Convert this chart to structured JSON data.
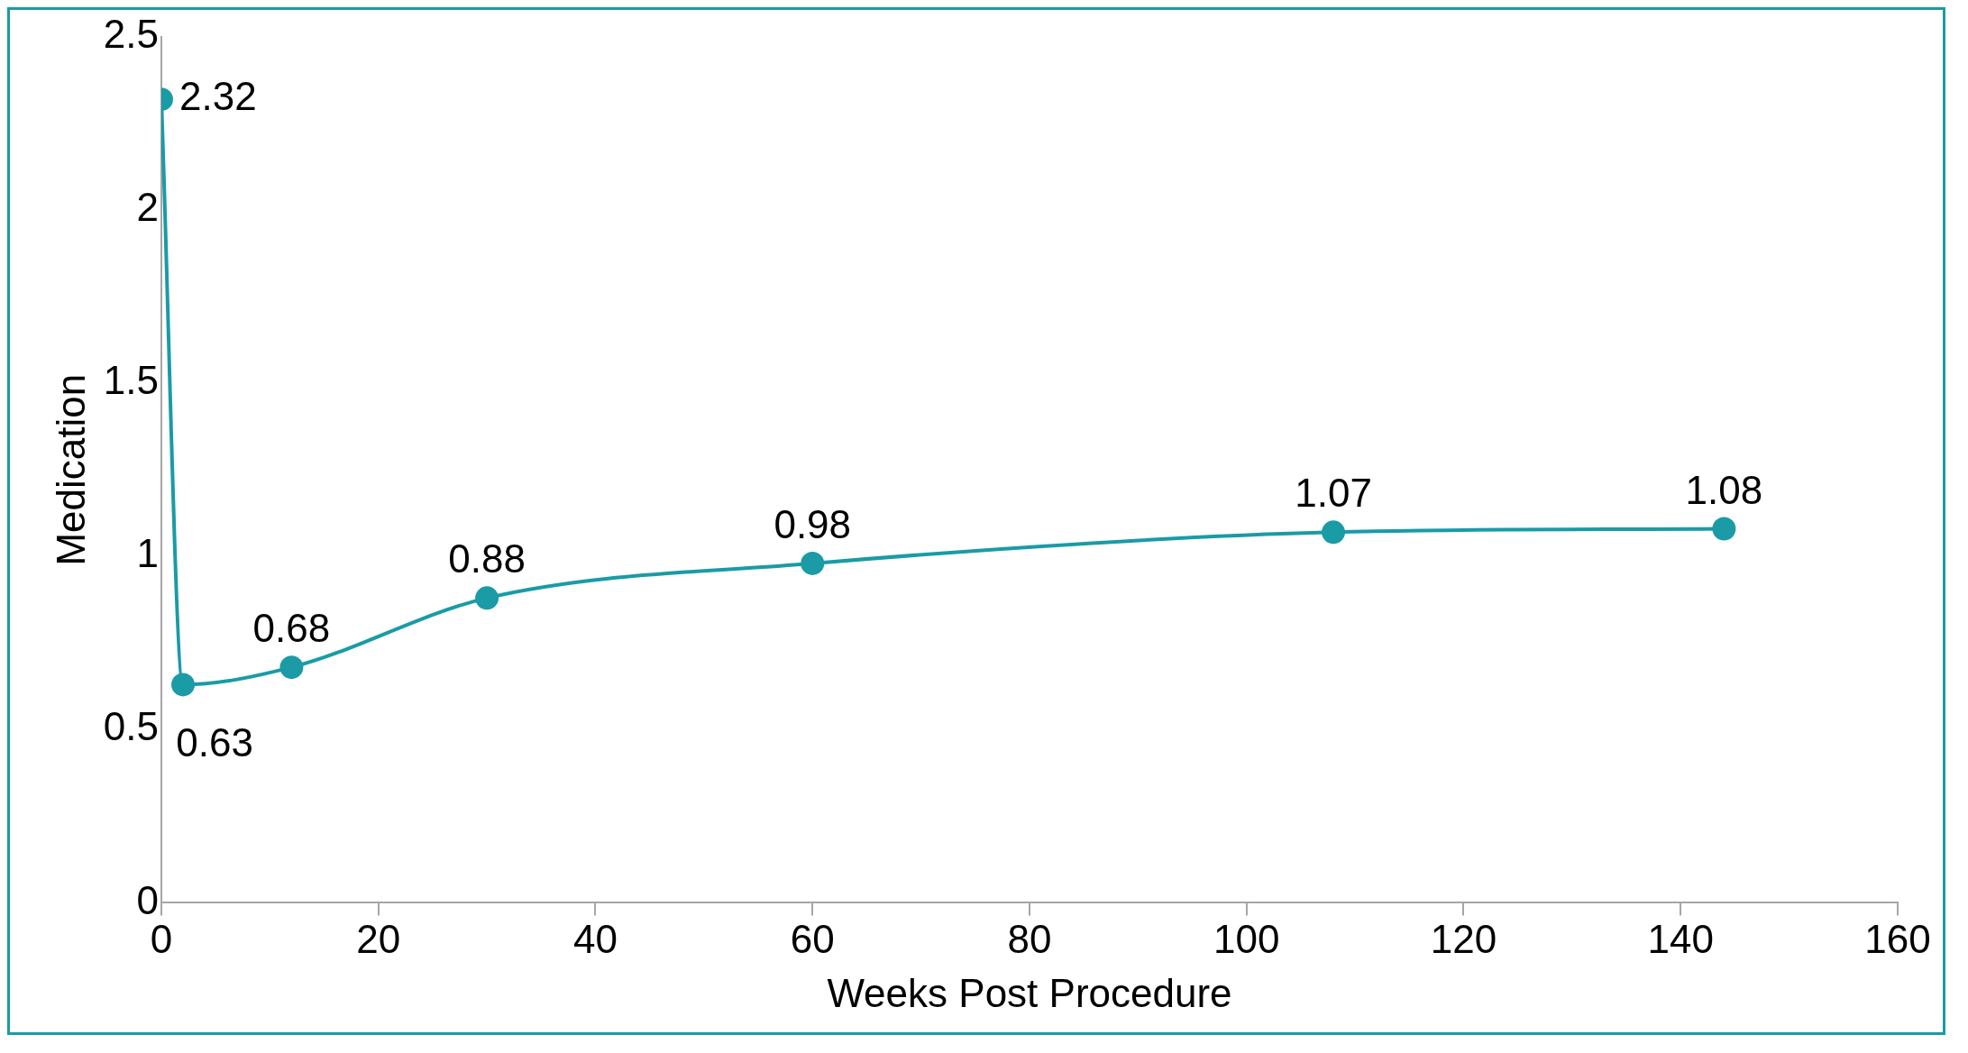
{
  "chart_data": {
    "type": "line",
    "xlabel": "Weeks Post Procedure",
    "ylabel": "Medication",
    "x": [
      0,
      2,
      12,
      30,
      60,
      108,
      144
    ],
    "series": [
      {
        "color": "#1a9ba6",
        "values": [
          2.32,
          0.63,
          0.68,
          0.88,
          0.98,
          1.07,
          1.08
        ]
      }
    ],
    "xlim": [
      0,
      160
    ],
    "xticks": [
      0,
      20,
      40,
      60,
      80,
      100,
      120,
      140,
      160
    ],
    "ylim": [
      0,
      2.5
    ],
    "yticks": [
      0,
      0.5,
      1,
      1.5,
      2,
      2.5
    ],
    "grid": false,
    "legend": false,
    "marker": "circle",
    "line_style": "solid",
    "data_labels": true
  }
}
